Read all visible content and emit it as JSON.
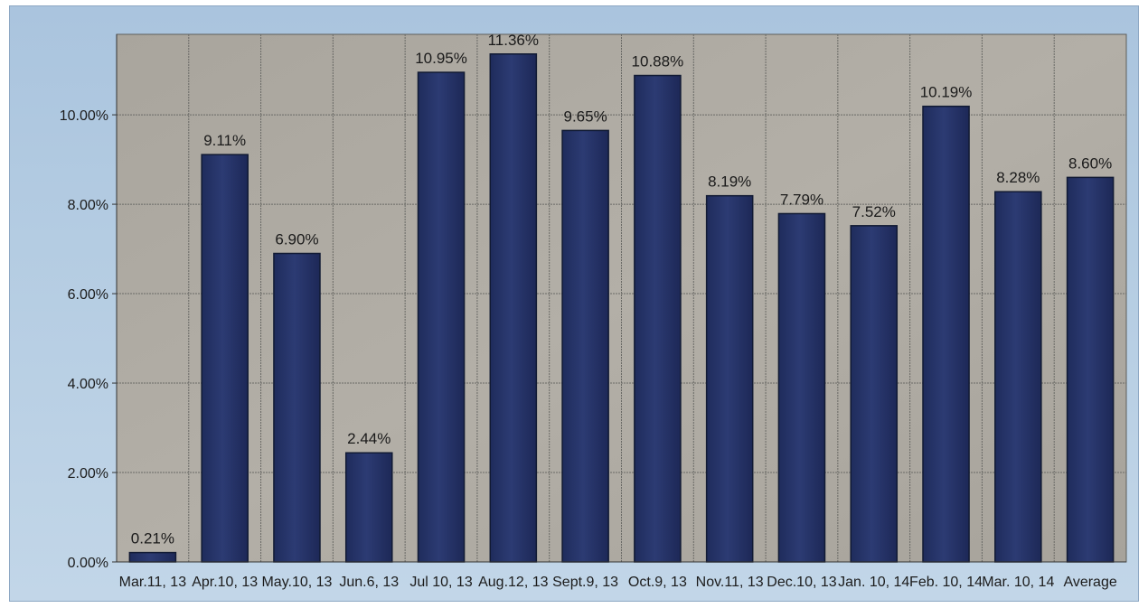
{
  "chart_data": {
    "type": "bar",
    "categories": [
      "Mar.11, 13",
      "Apr.10, 13",
      "May.10, 13",
      "Jun.6, 13",
      "Jul 10, 13",
      "Aug.12, 13",
      "Sept.9, 13",
      "Oct.9, 13",
      "Nov.11, 13",
      "Dec.10, 13",
      "Jan. 10, 14",
      "Feb. 10, 14",
      "Mar. 10, 14",
      "Average"
    ],
    "values": [
      0.21,
      9.11,
      6.9,
      2.44,
      10.95,
      11.36,
      9.65,
      10.88,
      8.19,
      7.79,
      7.52,
      10.19,
      8.28,
      8.6
    ],
    "data_labels": [
      "0.21%",
      "9.11%",
      "6.90%",
      "2.44%",
      "10.95%",
      "11.36%",
      "9.65%",
      "10.88%",
      "8.19%",
      "7.79%",
      "7.52%",
      "10.19%",
      "8.28%",
      "8.60%"
    ],
    "y_ticks": [
      0,
      2,
      4,
      6,
      8,
      10
    ],
    "y_tick_labels": [
      "0.00%",
      "2.00%",
      "4.00%",
      "6.00%",
      "8.00%",
      "10.00%"
    ],
    "ylim": [
      0,
      11.8
    ],
    "title": "",
    "xlabel": "",
    "ylabel": "",
    "grid": true,
    "legend": "none",
    "colors": {
      "bar": "#27356a",
      "bar_border": "#111a33",
      "plot_background": "#aeaaa2",
      "gridline": "#6a6a66",
      "frame_background": "#b4cce2"
    }
  }
}
